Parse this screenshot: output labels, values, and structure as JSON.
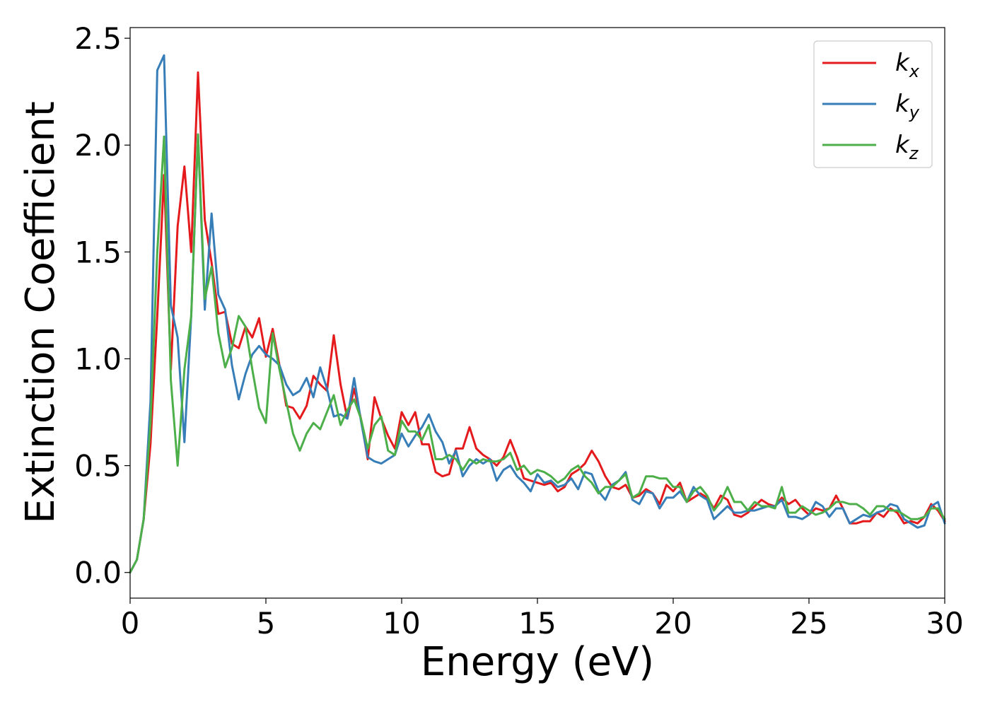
{
  "chart_data": {
    "type": "line",
    "xlabel": "Energy (eV)",
    "ylabel": "Extinction Coefficient",
    "xlim": [
      0,
      30
    ],
    "ylim": [
      -0.12,
      2.55
    ],
    "xticks": [
      0,
      5,
      10,
      15,
      20,
      25,
      30
    ],
    "xtick_labels": [
      "0",
      "5",
      "10",
      "15",
      "20",
      "25",
      "30"
    ],
    "yticks": [
      0.0,
      0.5,
      1.0,
      1.5,
      2.0,
      2.5
    ],
    "ytick_labels": [
      "0.0",
      "0.5",
      "1.0",
      "1.5",
      "2.0",
      "2.5"
    ],
    "grid": false,
    "legend_position": "top-right",
    "x": [
      0,
      0.25,
      0.5,
      0.75,
      1.0,
      1.25,
      1.5,
      1.75,
      2.0,
      2.25,
      2.5,
      2.75,
      3.0,
      3.25,
      3.5,
      3.75,
      4.0,
      4.25,
      4.5,
      4.75,
      5.0,
      5.25,
      5.5,
      5.75,
      6.0,
      6.25,
      6.5,
      6.75,
      7.0,
      7.25,
      7.5,
      7.75,
      8.0,
      8.25,
      8.5,
      8.75,
      9.0,
      9.25,
      9.5,
      9.75,
      10.0,
      10.25,
      10.5,
      10.75,
      11.0,
      11.25,
      11.5,
      11.75,
      12.0,
      12.25,
      12.5,
      12.75,
      13.0,
      13.25,
      13.5,
      13.75,
      14.0,
      14.25,
      14.5,
      14.75,
      15.0,
      15.25,
      15.5,
      15.75,
      16.0,
      16.25,
      16.5,
      16.75,
      17.0,
      17.25,
      17.5,
      17.75,
      18.0,
      18.25,
      18.5,
      18.75,
      19.0,
      19.25,
      19.5,
      19.75,
      20.0,
      20.25,
      20.5,
      20.75,
      21.0,
      21.25,
      21.5,
      21.75,
      22.0,
      22.25,
      22.5,
      22.75,
      23.0,
      23.25,
      23.5,
      23.75,
      24.0,
      24.25,
      24.5,
      24.75,
      25.0,
      25.25,
      25.5,
      25.75,
      26.0,
      26.25,
      26.5,
      26.75,
      27.0,
      27.25,
      27.5,
      27.75,
      28.0,
      28.25,
      28.5,
      28.75,
      29.0,
      29.25,
      29.5,
      29.75,
      30.0
    ],
    "series": [
      {
        "name": "k_x",
        "color": "#e41a1c",
        "legend_base": "k",
        "legend_sub": "x",
        "values": [
          0.0,
          0.06,
          0.25,
          0.6,
          1.2,
          1.86,
          0.95,
          1.62,
          1.9,
          1.5,
          2.34,
          1.65,
          1.45,
          1.21,
          1.22,
          1.07,
          1.05,
          1.15,
          1.1,
          1.19,
          1.01,
          1.14,
          0.97,
          0.78,
          0.77,
          0.72,
          0.78,
          0.92,
          0.88,
          0.85,
          1.11,
          0.88,
          0.72,
          0.86,
          0.72,
          0.53,
          0.82,
          0.72,
          0.64,
          0.58,
          0.75,
          0.69,
          0.75,
          0.6,
          0.6,
          0.47,
          0.45,
          0.46,
          0.58,
          0.58,
          0.68,
          0.58,
          0.55,
          0.53,
          0.5,
          0.54,
          0.62,
          0.54,
          0.44,
          0.43,
          0.42,
          0.41,
          0.42,
          0.38,
          0.4,
          0.46,
          0.48,
          0.51,
          0.57,
          0.52,
          0.45,
          0.4,
          0.39,
          0.41,
          0.35,
          0.36,
          0.39,
          0.37,
          0.32,
          0.41,
          0.38,
          0.42,
          0.33,
          0.35,
          0.37,
          0.35,
          0.3,
          0.36,
          0.34,
          0.27,
          0.26,
          0.28,
          0.31,
          0.34,
          0.32,
          0.31,
          0.35,
          0.32,
          0.34,
          0.3,
          0.27,
          0.3,
          0.29,
          0.3,
          0.36,
          0.3,
          0.23,
          0.23,
          0.24,
          0.24,
          0.28,
          0.26,
          0.3,
          0.28,
          0.23,
          0.24,
          0.23,
          0.26,
          0.32,
          0.29,
          0.24
        ]
      },
      {
        "name": "k_y",
        "color": "#377eb8",
        "legend_base": "k",
        "legend_sub": "y",
        "values": [
          0.0,
          0.06,
          0.25,
          0.8,
          2.35,
          2.42,
          1.25,
          1.1,
          0.61,
          1.2,
          2.05,
          1.23,
          1.68,
          1.3,
          1.23,
          0.97,
          0.81,
          0.93,
          1.02,
          1.06,
          1.02,
          1.0,
          0.97,
          0.88,
          0.83,
          0.85,
          0.91,
          0.82,
          0.96,
          0.86,
          0.73,
          0.74,
          0.72,
          0.91,
          0.71,
          0.54,
          0.52,
          0.51,
          0.53,
          0.55,
          0.65,
          0.59,
          0.64,
          0.68,
          0.74,
          0.66,
          0.61,
          0.51,
          0.57,
          0.45,
          0.5,
          0.53,
          0.51,
          0.53,
          0.43,
          0.48,
          0.5,
          0.45,
          0.42,
          0.38,
          0.46,
          0.42,
          0.43,
          0.4,
          0.41,
          0.44,
          0.39,
          0.47,
          0.46,
          0.38,
          0.34,
          0.41,
          0.43,
          0.47,
          0.34,
          0.32,
          0.38,
          0.37,
          0.3,
          0.35,
          0.35,
          0.38,
          0.33,
          0.4,
          0.36,
          0.34,
          0.25,
          0.28,
          0.31,
          0.28,
          0.28,
          0.29,
          0.29,
          0.3,
          0.31,
          0.31,
          0.34,
          0.26,
          0.26,
          0.25,
          0.27,
          0.33,
          0.31,
          0.26,
          0.3,
          0.3,
          0.23,
          0.25,
          0.27,
          0.26,
          0.28,
          0.29,
          0.32,
          0.31,
          0.25,
          0.23,
          0.21,
          0.22,
          0.31,
          0.33,
          0.23
        ]
      },
      {
        "name": "k_z",
        "color": "#4daf4a",
        "legend_base": "k",
        "legend_sub": "z",
        "values": [
          0.0,
          0.06,
          0.25,
          0.7,
          1.5,
          2.04,
          0.9,
          0.5,
          0.95,
          1.2,
          2.05,
          1.28,
          1.43,
          1.12,
          0.96,
          1.05,
          1.2,
          1.15,
          0.95,
          0.77,
          0.7,
          1.12,
          0.95,
          0.8,
          0.65,
          0.57,
          0.65,
          0.7,
          0.67,
          0.75,
          0.83,
          0.69,
          0.76,
          0.81,
          0.72,
          0.58,
          0.69,
          0.73,
          0.57,
          0.55,
          0.71,
          0.66,
          0.66,
          0.62,
          0.69,
          0.53,
          0.53,
          0.55,
          0.53,
          0.48,
          0.53,
          0.51,
          0.53,
          0.52,
          0.52,
          0.53,
          0.56,
          0.48,
          0.5,
          0.46,
          0.48,
          0.47,
          0.45,
          0.42,
          0.44,
          0.48,
          0.5,
          0.45,
          0.42,
          0.37,
          0.4,
          0.4,
          0.43,
          0.46,
          0.35,
          0.37,
          0.45,
          0.45,
          0.44,
          0.44,
          0.4,
          0.4,
          0.33,
          0.38,
          0.4,
          0.36,
          0.29,
          0.33,
          0.4,
          0.33,
          0.33,
          0.29,
          0.33,
          0.31,
          0.31,
          0.3,
          0.4,
          0.28,
          0.28,
          0.31,
          0.29,
          0.27,
          0.28,
          0.3,
          0.33,
          0.33,
          0.32,
          0.32,
          0.3,
          0.27,
          0.31,
          0.31,
          0.29,
          0.29,
          0.27,
          0.25,
          0.25,
          0.26,
          0.3,
          0.3,
          0.25
        ]
      }
    ]
  }
}
